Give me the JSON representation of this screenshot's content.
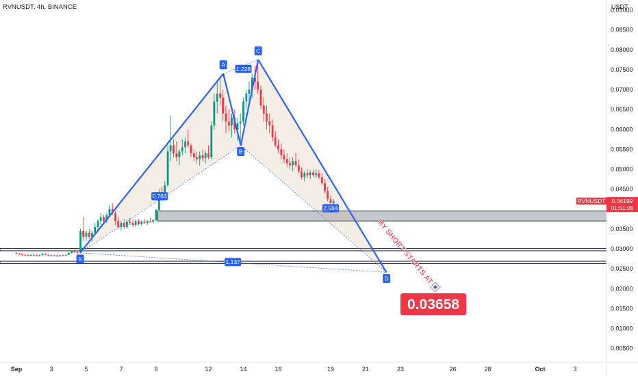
{
  "header": {
    "symbol": "RVNUSDT, 4h, BINANCE",
    "currency": "USDT"
  },
  "chart_data": {
    "type": "candlestick",
    "symbol": "RVNUSDT",
    "interval": "4h",
    "exchange": "BINANCE",
    "y_ticks": [
      "0.00500",
      "0.01000",
      "0.01500",
      "0.02000",
      "0.02500",
      "0.03000",
      "0.03500",
      "0.04000",
      "0.04500",
      "0.05000",
      "0.05500",
      "0.06000",
      "0.06500",
      "0.07000",
      "0.07500",
      "0.08000",
      "0.08500",
      "0.09000"
    ],
    "ylim": [
      0.0015,
      0.0925
    ],
    "x_ticks": [
      {
        "label": "Sep",
        "d": 1
      },
      {
        "label": "3",
        "d": 3
      },
      {
        "label": "5",
        "d": 5
      },
      {
        "label": "7",
        "d": 7
      },
      {
        "label": "9",
        "d": 9
      },
      {
        "label": "12",
        "d": 12
      },
      {
        "label": "14",
        "d": 14
      },
      {
        "label": "16",
        "d": 16
      },
      {
        "label": "19",
        "d": 19
      },
      {
        "label": "21",
        "d": 21
      },
      {
        "label": "23",
        "d": 23
      },
      {
        "label": "26",
        "d": 26
      },
      {
        "label": "28",
        "d": 28
      },
      {
        "label": "Oct",
        "d": 31
      },
      {
        "label": "3",
        "d": 33
      }
    ],
    "price_label": {
      "name": "RVNUSDT",
      "price": "0.04199",
      "countdown": "01:51:05",
      "value": 0.04199
    },
    "harmonic_pattern": {
      "points": [
        {
          "label": "X",
          "d": 4.65,
          "price": 0.029
        },
        {
          "label": "A",
          "d": 12.85,
          "price": 0.074
        },
        {
          "label": "B",
          "d": 13.85,
          "price": 0.056
        },
        {
          "label": "C",
          "d": 14.85,
          "price": 0.0775
        },
        {
          "label": "D",
          "d": 22.2,
          "price": 0.0241
        }
      ],
      "ratios": [
        {
          "text": "0.763",
          "d": 9.2,
          "price": 0.0432
        },
        {
          "text": "1.228",
          "d": 14.0,
          "price": 0.0752
        },
        {
          "text": "2.584",
          "d": 19.0,
          "price": 0.0402
        },
        {
          "text": "1.137",
          "d": 13.4,
          "price": 0.0267
        }
      ]
    },
    "zones": [
      {
        "top": 0.0395,
        "bottom": 0.037
      },
      {
        "top": 0.0301,
        "bottom": 0.0295
      },
      {
        "top": 0.0269,
        "bottom": 0.0263
      }
    ],
    "annotation": "MY SHORT STARTS AT",
    "target_label": "0.03658",
    "candles": [
      [
        1,
        0.029,
        0.0291,
        0.0286,
        0.0288
      ],
      [
        1.17,
        0.0288,
        0.029,
        0.0284,
        0.0286
      ],
      [
        1.33,
        0.0286,
        0.0289,
        0.0283,
        0.0285
      ],
      [
        1.5,
        0.0285,
        0.0288,
        0.0282,
        0.0284
      ],
      [
        1.67,
        0.0284,
        0.0287,
        0.0281,
        0.0283
      ],
      [
        1.83,
        0.0283,
        0.0287,
        0.0282,
        0.0285
      ],
      [
        2,
        0.0285,
        0.0288,
        0.0283,
        0.0284
      ],
      [
        2.17,
        0.0284,
        0.0286,
        0.0281,
        0.0282
      ],
      [
        2.33,
        0.0282,
        0.0286,
        0.0281,
        0.0284
      ],
      [
        2.5,
        0.0284,
        0.029,
        0.0283,
        0.0287
      ],
      [
        2.67,
        0.0287,
        0.0289,
        0.0284,
        0.0285
      ],
      [
        2.83,
        0.0285,
        0.0287,
        0.0282,
        0.0283
      ],
      [
        3,
        0.0283,
        0.0286,
        0.0281,
        0.0284
      ],
      [
        3.17,
        0.0284,
        0.0286,
        0.0282,
        0.0283
      ],
      [
        3.33,
        0.0283,
        0.0285,
        0.0281,
        0.0282
      ],
      [
        3.5,
        0.0282,
        0.0285,
        0.028,
        0.0284
      ],
      [
        3.67,
        0.0284,
        0.0286,
        0.0282,
        0.0283
      ],
      [
        3.83,
        0.0283,
        0.0286,
        0.0282,
        0.0285
      ],
      [
        4,
        0.0285,
        0.0292,
        0.0284,
        0.029
      ],
      [
        4.17,
        0.029,
        0.0296,
        0.0288,
        0.0294
      ],
      [
        4.33,
        0.0294,
        0.0298,
        0.029,
        0.0292
      ],
      [
        4.5,
        0.0292,
        0.0296,
        0.0288,
        0.0291
      ],
      [
        4.67,
        0.0291,
        0.035,
        0.0289,
        0.0345
      ],
      [
        4.83,
        0.0345,
        0.038,
        0.032,
        0.033
      ],
      [
        5,
        0.033,
        0.0345,
        0.032,
        0.034
      ],
      [
        5.17,
        0.034,
        0.035,
        0.0325,
        0.033
      ],
      [
        5.33,
        0.033,
        0.0345,
        0.0318,
        0.034
      ],
      [
        5.5,
        0.034,
        0.0365,
        0.0335,
        0.0355
      ],
      [
        5.67,
        0.0355,
        0.0375,
        0.0345,
        0.037
      ],
      [
        5.83,
        0.037,
        0.039,
        0.036,
        0.038
      ],
      [
        6,
        0.038,
        0.0385,
        0.0365,
        0.037
      ],
      [
        6.17,
        0.037,
        0.039,
        0.0365,
        0.0385
      ],
      [
        6.33,
        0.0385,
        0.041,
        0.038,
        0.04
      ],
      [
        6.5,
        0.04,
        0.0415,
        0.0385,
        0.039
      ],
      [
        6.67,
        0.039,
        0.0395,
        0.036,
        0.037
      ],
      [
        6.83,
        0.037,
        0.038,
        0.035,
        0.0355
      ],
      [
        7,
        0.0355,
        0.037,
        0.0345,
        0.0365
      ],
      [
        7.17,
        0.0365,
        0.0375,
        0.035,
        0.0355
      ],
      [
        7.33,
        0.0355,
        0.0372,
        0.035,
        0.0368
      ],
      [
        7.5,
        0.0368,
        0.0378,
        0.036,
        0.0365
      ],
      [
        7.67,
        0.0365,
        0.0375,
        0.0355,
        0.036
      ],
      [
        7.83,
        0.036,
        0.0373,
        0.0355,
        0.037
      ],
      [
        8,
        0.037,
        0.0375,
        0.036,
        0.0362
      ],
      [
        8.17,
        0.0362,
        0.0372,
        0.0357,
        0.0368
      ],
      [
        8.33,
        0.0368,
        0.0375,
        0.0362,
        0.0365
      ],
      [
        8.5,
        0.0365,
        0.0372,
        0.036,
        0.037
      ],
      [
        8.67,
        0.037,
        0.0378,
        0.0365,
        0.0368
      ],
      [
        8.83,
        0.0368,
        0.0375,
        0.0365,
        0.0372
      ],
      [
        9,
        0.0372,
        0.04,
        0.0368,
        0.0398
      ],
      [
        9.17,
        0.0398,
        0.045,
        0.0395,
        0.044
      ],
      [
        9.33,
        0.044,
        0.0455,
        0.042,
        0.043
      ],
      [
        9.5,
        0.043,
        0.047,
        0.0425,
        0.046
      ],
      [
        9.67,
        0.046,
        0.056,
        0.0455,
        0.0545
      ],
      [
        9.83,
        0.0545,
        0.0635,
        0.052,
        0.056
      ],
      [
        10,
        0.056,
        0.0575,
        0.053,
        0.054
      ],
      [
        10.17,
        0.054,
        0.057,
        0.052,
        0.053
      ],
      [
        10.33,
        0.053,
        0.055,
        0.051,
        0.0545
      ],
      [
        10.5,
        0.0545,
        0.0575,
        0.0535,
        0.0555
      ],
      [
        10.67,
        0.0555,
        0.058,
        0.054,
        0.057
      ],
      [
        10.83,
        0.057,
        0.06,
        0.0555,
        0.056
      ],
      [
        11,
        0.056,
        0.0565,
        0.053,
        0.054
      ],
      [
        11.17,
        0.054,
        0.055,
        0.052,
        0.053
      ],
      [
        11.33,
        0.053,
        0.0545,
        0.0515,
        0.0525
      ],
      [
        11.5,
        0.0525,
        0.0545,
        0.051,
        0.0535
      ],
      [
        11.67,
        0.0535,
        0.055,
        0.052,
        0.0528
      ],
      [
        11.83,
        0.0528,
        0.0545,
        0.0515,
        0.054
      ],
      [
        12,
        0.054,
        0.056,
        0.0525,
        0.053
      ],
      [
        12.17,
        0.053,
        0.062,
        0.0525,
        0.061
      ],
      [
        12.33,
        0.061,
        0.069,
        0.06,
        0.067
      ],
      [
        12.5,
        0.067,
        0.072,
        0.064,
        0.069
      ],
      [
        12.67,
        0.069,
        0.073,
        0.066,
        0.068
      ],
      [
        12.83,
        0.068,
        0.07,
        0.062,
        0.064
      ],
      [
        13,
        0.064,
        0.066,
        0.059,
        0.062
      ],
      [
        13.17,
        0.062,
        0.065,
        0.0595,
        0.061
      ],
      [
        13.33,
        0.061,
        0.064,
        0.058,
        0.063
      ],
      [
        13.5,
        0.063,
        0.065,
        0.059,
        0.06
      ],
      [
        13.67,
        0.06,
        0.063,
        0.057,
        0.0615
      ],
      [
        13.83,
        0.0615,
        0.064,
        0.0565,
        0.062
      ],
      [
        14,
        0.062,
        0.068,
        0.061,
        0.067
      ],
      [
        14.17,
        0.067,
        0.07,
        0.065,
        0.069
      ],
      [
        14.33,
        0.069,
        0.072,
        0.067,
        0.07
      ],
      [
        14.5,
        0.07,
        0.074,
        0.068,
        0.073
      ],
      [
        14.67,
        0.073,
        0.076,
        0.07,
        0.072
      ],
      [
        14.83,
        0.072,
        0.077,
        0.069,
        0.07
      ],
      [
        15,
        0.07,
        0.071,
        0.065,
        0.066
      ],
      [
        15.17,
        0.066,
        0.068,
        0.062,
        0.064
      ],
      [
        15.33,
        0.064,
        0.066,
        0.06,
        0.062
      ],
      [
        15.5,
        0.062,
        0.064,
        0.059,
        0.061
      ],
      [
        15.67,
        0.061,
        0.0625,
        0.057,
        0.058
      ],
      [
        15.83,
        0.058,
        0.0595,
        0.0555,
        0.056
      ],
      [
        16,
        0.056,
        0.0575,
        0.054,
        0.055
      ],
      [
        16.17,
        0.055,
        0.0565,
        0.0525,
        0.0535
      ],
      [
        16.33,
        0.0535,
        0.055,
        0.0515,
        0.0525
      ],
      [
        16.5,
        0.0525,
        0.054,
        0.0505,
        0.0515
      ],
      [
        16.67,
        0.0515,
        0.053,
        0.05,
        0.051
      ],
      [
        16.83,
        0.051,
        0.053,
        0.0495,
        0.052
      ],
      [
        17,
        0.052,
        0.054,
        0.0505,
        0.051
      ],
      [
        17.17,
        0.051,
        0.0525,
        0.049,
        0.0495
      ],
      [
        17.33,
        0.0495,
        0.0505,
        0.0475,
        0.048
      ],
      [
        17.5,
        0.048,
        0.0495,
        0.047,
        0.049
      ],
      [
        17.67,
        0.049,
        0.05,
        0.0478,
        0.0485
      ],
      [
        17.83,
        0.0485,
        0.0498,
        0.0475,
        0.0492
      ],
      [
        18,
        0.0492,
        0.05,
        0.048,
        0.0485
      ],
      [
        18.17,
        0.0485,
        0.05,
        0.0478,
        0.049
      ],
      [
        18.33,
        0.049,
        0.0498,
        0.0475,
        0.048
      ],
      [
        18.5,
        0.048,
        0.049,
        0.046,
        0.0465
      ],
      [
        18.67,
        0.0465,
        0.0475,
        0.044,
        0.0445
      ],
      [
        18.83,
        0.0445,
        0.0455,
        0.042,
        0.0425
      ],
      [
        19,
        0.0425,
        0.0435,
        0.0408,
        0.0415
      ],
      [
        19.17,
        0.0415,
        0.0425,
        0.041,
        0.042
      ]
    ]
  }
}
